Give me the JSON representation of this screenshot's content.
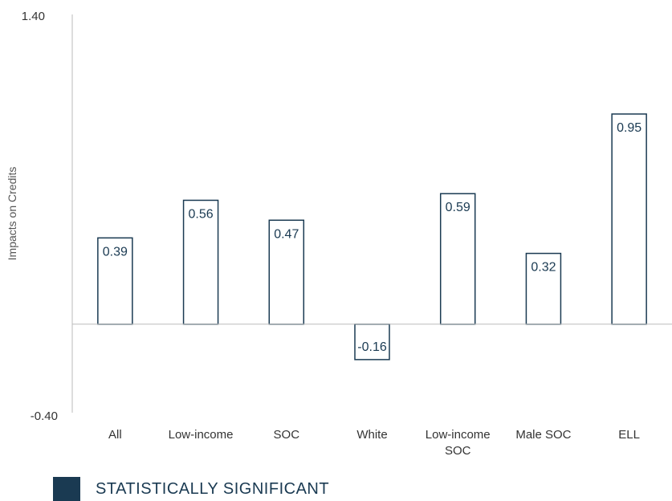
{
  "chart_data": {
    "type": "bar",
    "ylabel": "Impacts on Credits",
    "ylim": [
      -0.4,
      1.4
    ],
    "ytick_labels": [
      "1.40",
      "-0.40"
    ],
    "categories": [
      [
        "All"
      ],
      [
        "Low-income"
      ],
      [
        "SOC"
      ],
      [
        "White"
      ],
      [
        "Low-income",
        "SOC"
      ],
      [
        "Male SOC"
      ],
      [
        "ELL"
      ]
    ],
    "values": [
      0.39,
      0.56,
      0.47,
      -0.16,
      0.59,
      0.32,
      0.95
    ],
    "value_labels": [
      "0.39",
      "0.56",
      "0.47",
      "-0.16",
      "0.59",
      "0.32",
      "0.95"
    ],
    "bar_style": "outline",
    "bar_color": "#1a3a52",
    "axis_color": "#bbbbbb"
  },
  "legend": {
    "label": "STATISTICALLY SIGNIFICANT",
    "color": "#1a3a52"
  }
}
